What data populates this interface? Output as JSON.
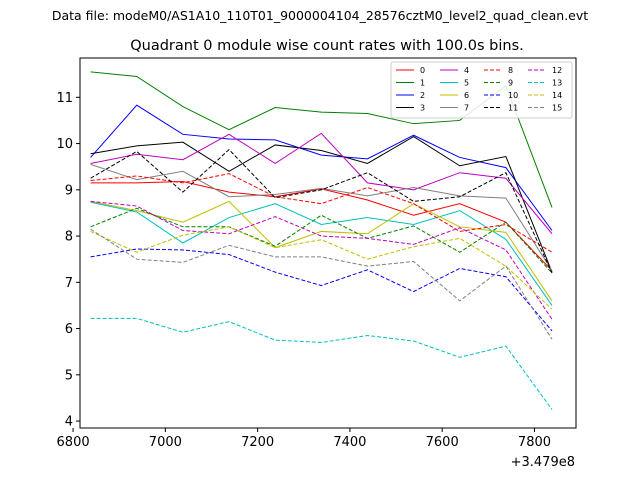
{
  "suptitle": "Data file: modeM0/AS1A10_110T01_9000004104_28576cztM0_level2_quad_clean.evt",
  "chart_data": {
    "type": "line",
    "title": "Quadrant 0 module wise count rates with 100.0s bins.",
    "xlabel": "",
    "ylabel": "",
    "x_offset_label": "+3.479e8",
    "xlim": [
      6815,
      7890
    ],
    "ylim": [
      3.85,
      11.85
    ],
    "x_ticks": [
      6800,
      7000,
      7200,
      7400,
      7600,
      7800
    ],
    "y_ticks": [
      4,
      5,
      6,
      7,
      8,
      9,
      10,
      11
    ],
    "x": [
      6838,
      6938,
      7038,
      7138,
      7238,
      7338,
      7438,
      7538,
      7638,
      7738,
      7838
    ],
    "legend_position": "top-right",
    "series": [
      {
        "name": "0",
        "color": "#ff0000",
        "dash": "solid",
        "values": [
          9.15,
          9.15,
          9.18,
          8.95,
          8.85,
          9.02,
          8.78,
          8.45,
          8.7,
          8.3,
          7.25
        ]
      },
      {
        "name": "1",
        "color": "#008000",
        "dash": "solid",
        "values": [
          11.55,
          11.45,
          10.8,
          10.3,
          10.78,
          10.68,
          10.65,
          10.43,
          10.5,
          11.25,
          8.62
        ]
      },
      {
        "name": "2",
        "color": "#0000ff",
        "dash": "solid",
        "values": [
          9.7,
          10.83,
          10.2,
          10.1,
          10.08,
          9.75,
          9.67,
          10.18,
          9.7,
          9.48,
          8.12
        ]
      },
      {
        "name": "3",
        "color": "#000000",
        "dash": "solid",
        "values": [
          9.78,
          9.95,
          10.03,
          9.4,
          9.97,
          9.85,
          9.57,
          10.15,
          9.52,
          9.72,
          7.22
        ]
      },
      {
        "name": "4",
        "color": "#bf00bf",
        "dash": "solid",
        "values": [
          9.57,
          9.77,
          9.65,
          10.2,
          9.57,
          10.22,
          9.15,
          9.0,
          9.37,
          9.25,
          8.05
        ]
      },
      {
        "name": "5",
        "color": "#00bfbf",
        "dash": "solid",
        "values": [
          8.73,
          8.52,
          7.85,
          8.4,
          8.7,
          8.25,
          8.4,
          8.25,
          8.55,
          7.93,
          6.5
        ]
      },
      {
        "name": "6",
        "color": "#bfbf00",
        "dash": "solid",
        "values": [
          8.75,
          8.55,
          8.3,
          8.75,
          7.75,
          8.1,
          8.05,
          8.7,
          8.2,
          8.08,
          6.6
        ]
      },
      {
        "name": "7",
        "color": "#808080",
        "dash": "solid",
        "values": [
          9.55,
          9.22,
          9.4,
          8.85,
          8.9,
          9.03,
          8.87,
          9.05,
          8.87,
          8.82,
          7.25
        ]
      },
      {
        "name": "8",
        "color": "#ff0000",
        "dash": "dashed",
        "values": [
          9.2,
          9.3,
          9.15,
          9.35,
          8.85,
          8.7,
          9.05,
          8.7,
          8.1,
          8.25,
          7.65
        ]
      },
      {
        "name": "9",
        "color": "#008000",
        "dash": "dashed",
        "values": [
          8.2,
          8.6,
          8.2,
          8.2,
          7.78,
          8.45,
          7.95,
          8.22,
          7.65,
          8.3,
          7.2
        ]
      },
      {
        "name": "10",
        "color": "#0000ff",
        "dash": "dashed",
        "values": [
          7.55,
          7.72,
          7.7,
          7.6,
          7.22,
          6.93,
          7.27,
          6.8,
          7.3,
          7.12,
          5.95
        ]
      },
      {
        "name": "11",
        "color": "#000000",
        "dash": "dashed",
        "values": [
          9.25,
          9.83,
          8.95,
          9.87,
          8.83,
          9.0,
          9.37,
          8.75,
          8.85,
          9.37,
          7.2
        ]
      },
      {
        "name": "12",
        "color": "#bf00bf",
        "dash": "dashed",
        "values": [
          8.75,
          8.65,
          8.12,
          8.05,
          8.42,
          8.0,
          7.95,
          7.82,
          8.18,
          7.7,
          6.2
        ]
      },
      {
        "name": "13",
        "color": "#00bfbf",
        "dash": "dashed",
        "values": [
          6.22,
          6.22,
          5.92,
          6.15,
          5.75,
          5.7,
          5.85,
          5.73,
          5.38,
          5.62,
          4.25
        ]
      },
      {
        "name": "14",
        "color": "#bfbf00",
        "dash": "dashed",
        "values": [
          8.1,
          7.65,
          8.02,
          8.2,
          7.75,
          7.92,
          7.5,
          7.77,
          7.95,
          7.35,
          6.42
        ]
      },
      {
        "name": "15",
        "color": "#808080",
        "dash": "dashed",
        "values": [
          8.15,
          7.5,
          7.43,
          7.8,
          7.55,
          7.55,
          7.35,
          7.45,
          6.6,
          7.35,
          5.77
        ]
      }
    ]
  }
}
